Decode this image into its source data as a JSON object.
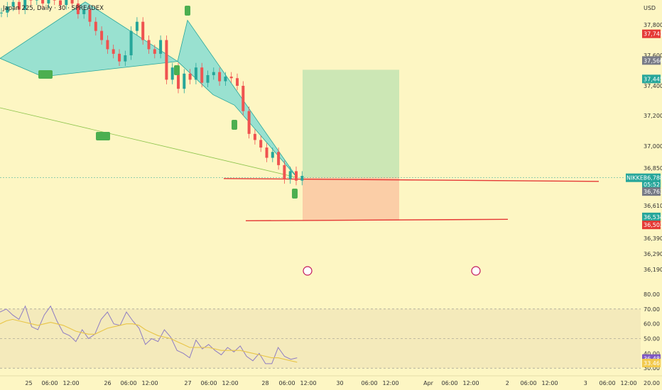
{
  "title": "Japan 225, Daily · 30 · SPREADEX",
  "currency": "USD",
  "colors": {
    "background": "#fdf6c3",
    "bull": "#26a69a",
    "bear": "#ef5350",
    "pattern_fill": "#7fdcd3",
    "target_zone": "#c6e6b4",
    "stop_zone": "#fbcaa4",
    "support_line": "#e53935",
    "rsi_line": "#8e7cc3",
    "rsi_ma": "#e8c547",
    "rsi_band": "#f0e6b8",
    "marker": "#4caf50"
  },
  "chart_data": [
    {
      "type": "line",
      "subtype": "candlestick",
      "title": "Japan 225, Daily · 30 · SPREADEX",
      "ylabel": "USD",
      "ylim": [
        36100,
        38000
      ],
      "price_ticks": [
        "37,800",
        "37,600",
        "37,400",
        "37,200",
        "37,000",
        "36,850",
        "36,610",
        "36,390",
        "36,290",
        "36,190"
      ],
      "price_tick_values": [
        37800,
        37600,
        37400,
        37200,
        37000,
        36850,
        36610,
        36390,
        36290,
        36190
      ],
      "price_tags": [
        {
          "label": "37,741",
          "value": 37741,
          "color": "#e53935"
        },
        {
          "label": "37,566",
          "value": 37566,
          "color": "#787b86"
        },
        {
          "label": "37,445",
          "value": 37445,
          "color": "#26a69a"
        },
        {
          "label": "36,788",
          "value": 36788,
          "color": "#26a69a"
        },
        {
          "label": "05:52",
          "value": 36745,
          "color": "#26a69a"
        },
        {
          "label": "36,763",
          "value": 36700,
          "color": "#787b86"
        },
        {
          "label": "36,534",
          "value": 36534,
          "color": "#26a69a"
        },
        {
          "label": "36,503",
          "value": 36480,
          "color": "#e53935"
        }
      ],
      "symbol_tag": "NIKKEI",
      "x_ticks": [
        "25",
        "06:00",
        "12:00",
        "26",
        "06:00",
        "12:00",
        "27",
        "06:00",
        "12:00",
        "28",
        "06:00",
        "12:00",
        "30",
        "06:00",
        "12:00",
        "Apr",
        "06:00",
        "12:00",
        "2",
        "06:00",
        "12:00",
        "3",
        "06:00",
        "12:00"
      ],
      "close_series": [
        37880,
        37920,
        37950,
        37900,
        37980,
        37960,
        38000,
        37940,
        37990,
        37960,
        37930,
        37980,
        37940,
        37870,
        37900,
        37820,
        37760,
        37700,
        37640,
        37610,
        37560,
        37600,
        37760,
        37820,
        37700,
        37640,
        37610,
        37700,
        37440,
        37520,
        37380,
        37480,
        37440,
        37520,
        37420,
        37470,
        37490,
        37430,
        37460,
        37450,
        37400,
        37230,
        37080,
        37040,
        36990,
        36920,
        36960,
        36870,
        36780,
        36830,
        36770,
        36800
      ],
      "trade_setup": {
        "entry": 36790,
        "target": 37505,
        "stop": 36510
      },
      "support_levels": [
        36783,
        36508
      ],
      "pattern_points": [
        [
          37580,
          37950
        ],
        [
          37580,
          37830
        ],
        [
          37880,
          37560
        ],
        [
          37830,
          37270
        ],
        [
          37270,
          36790
        ]
      ]
    },
    {
      "type": "line",
      "title": "",
      "ylim": [
        20,
        80
      ],
      "levels": [
        70,
        50,
        30
      ],
      "y_ticks": [
        "80.00",
        "70.00",
        "60.00",
        "50.00",
        "40.00",
        "30.00",
        "20.00"
      ],
      "y_tick_values": [
        80,
        70,
        60,
        50,
        40,
        30,
        20
      ],
      "tags": [
        {
          "label": "36.48",
          "value": 36.48,
          "color": "#7e57c2"
        },
        {
          "label": "33.46",
          "value": 33.46,
          "color": "#f2c94c"
        }
      ],
      "series": [
        {
          "values": [
            68,
            70,
            66,
            63,
            72,
            58,
            56,
            66,
            72,
            62,
            54,
            52,
            48,
            56,
            50,
            53,
            63,
            68,
            60,
            59,
            68,
            62,
            57,
            46,
            50,
            48,
            56,
            51,
            42,
            40,
            37,
            49,
            43,
            46,
            42,
            39,
            44,
            41,
            45,
            38,
            35,
            40,
            33,
            33,
            44,
            38,
            36,
            37
          ]
        },
        {
          "values": [
            60,
            62,
            63,
            62,
            61,
            60,
            59,
            60,
            61,
            60,
            59,
            57,
            55,
            54,
            53,
            53,
            55,
            57,
            58,
            59,
            60,
            60,
            59,
            56,
            54,
            52,
            51,
            50,
            48,
            46,
            44,
            44,
            44,
            44,
            43,
            42,
            42,
            42,
            42,
            41,
            40,
            39,
            38,
            37,
            37,
            36,
            35,
            34
          ]
        }
      ]
    }
  ]
}
